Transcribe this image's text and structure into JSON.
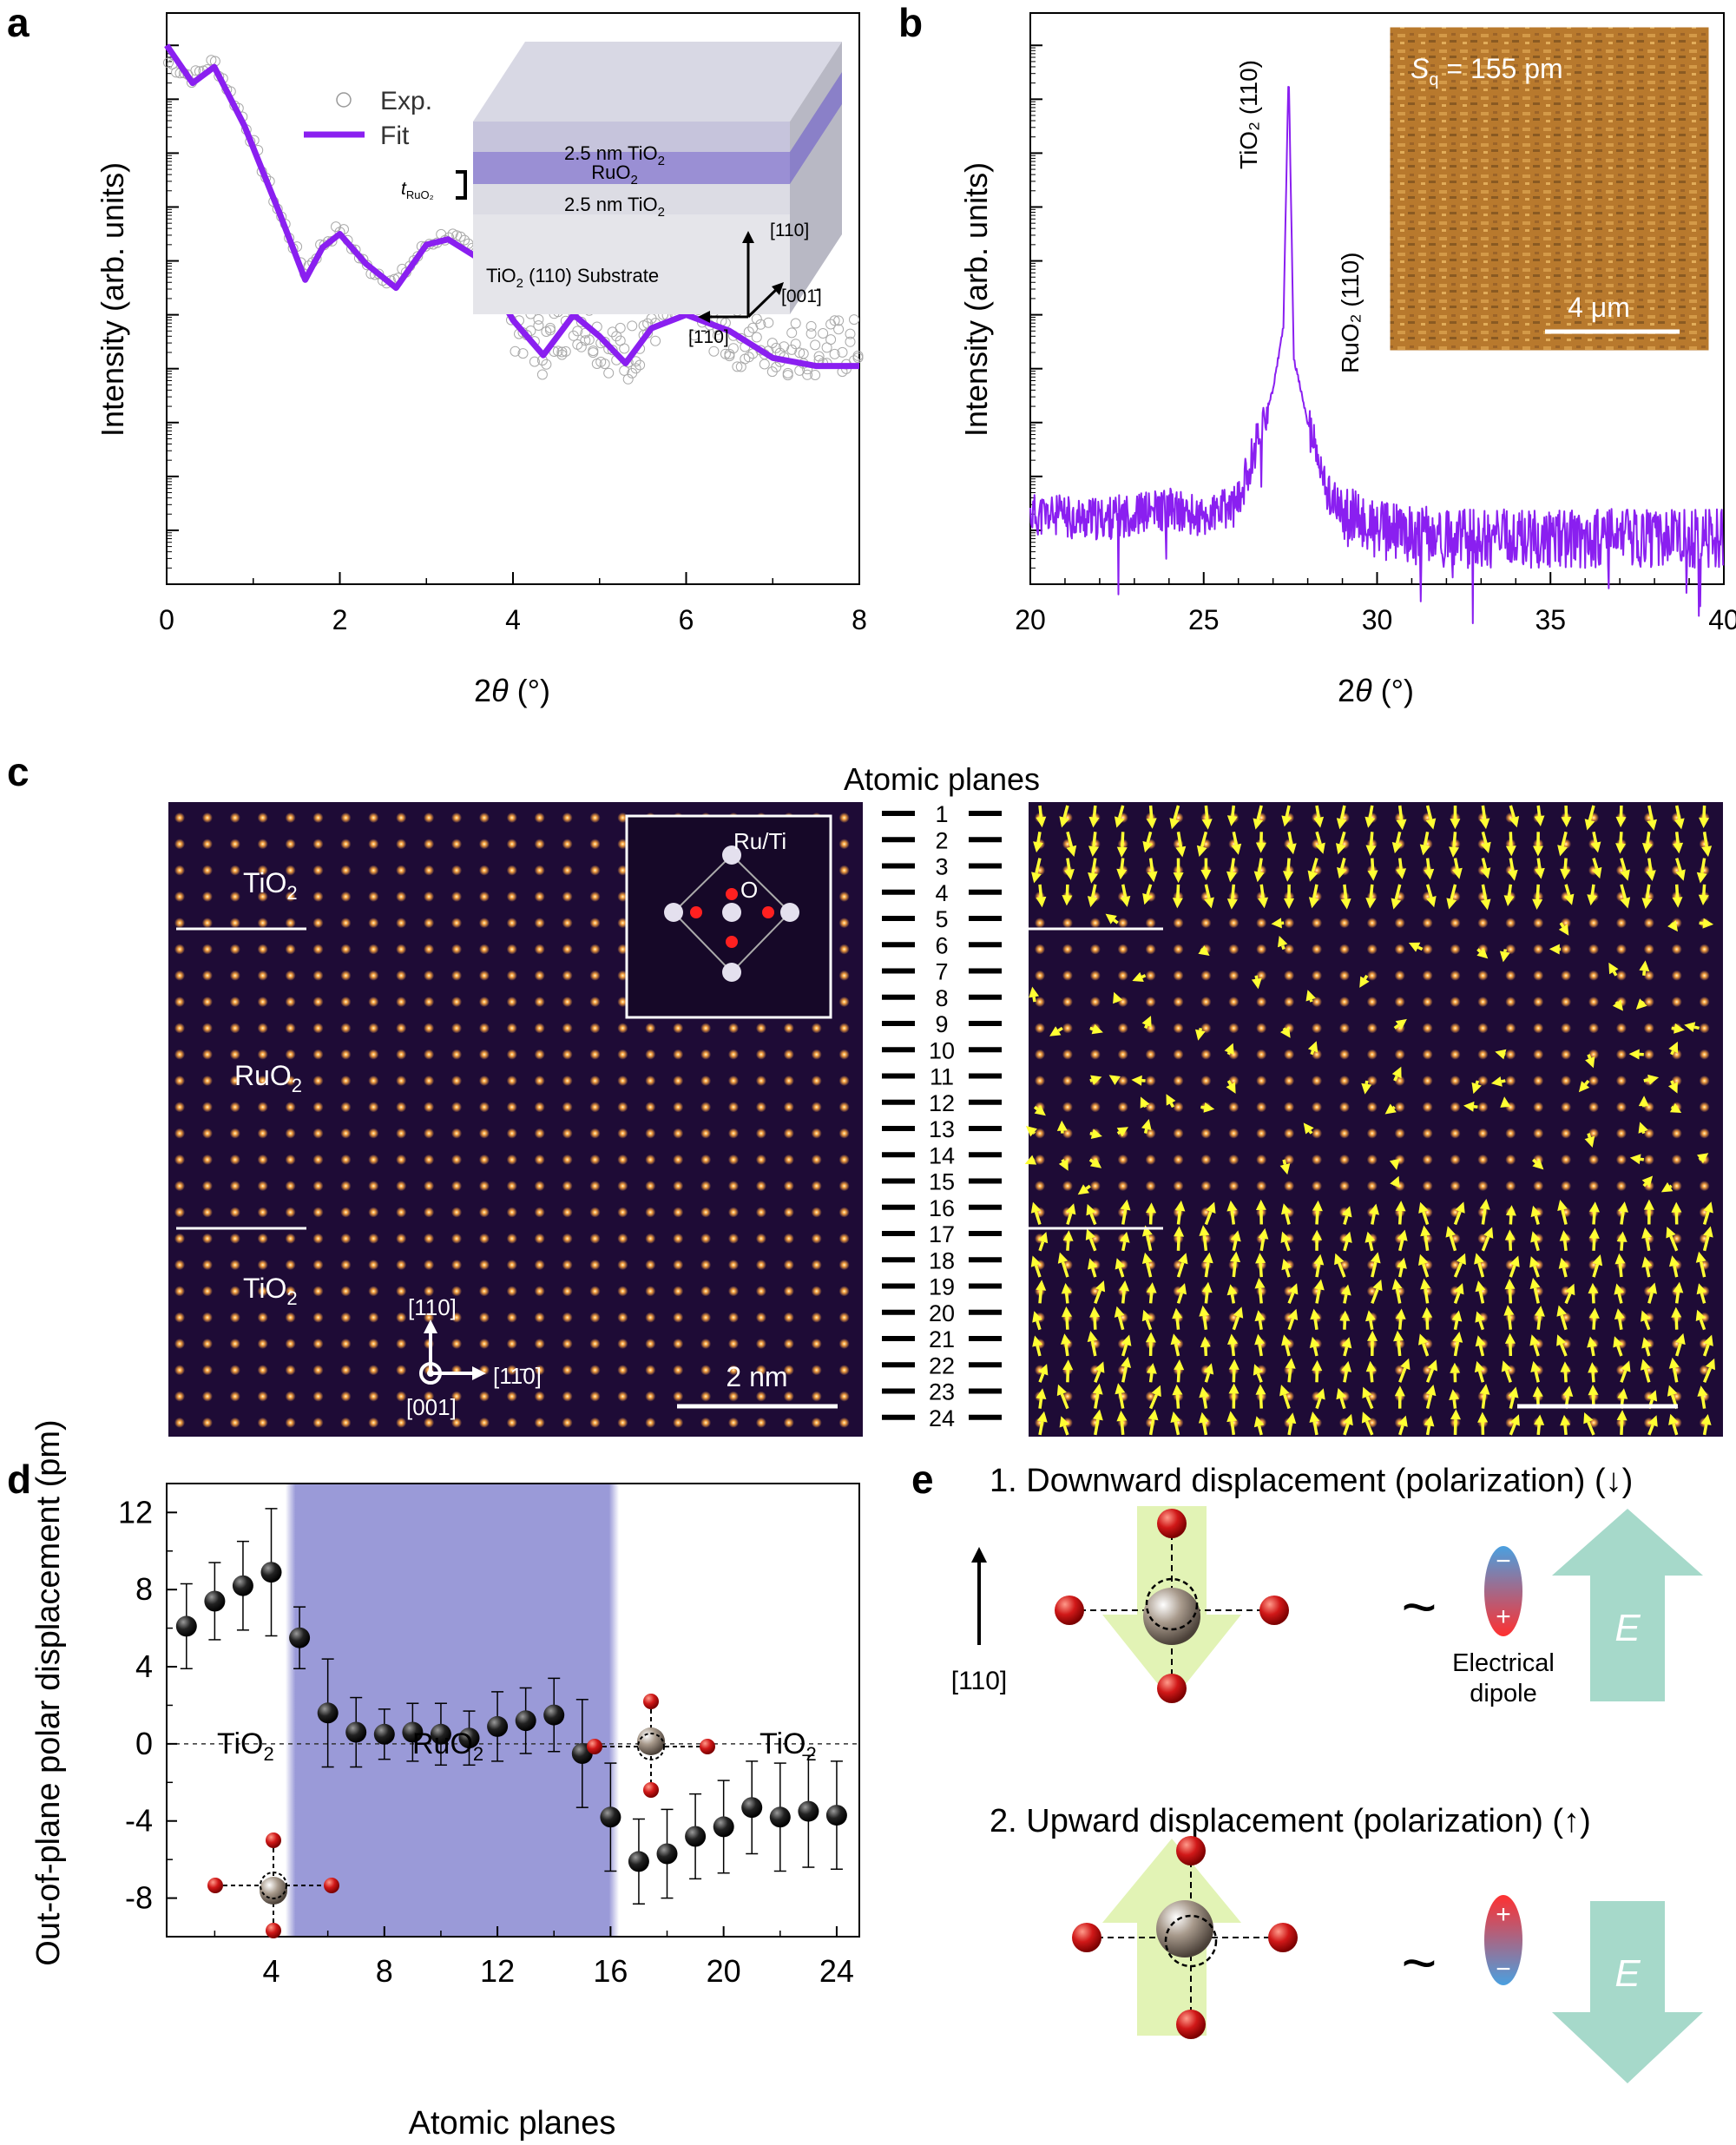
{
  "figure": {
    "panels": [
      "a",
      "b",
      "c",
      "d",
      "e"
    ]
  },
  "panel_a": {
    "ylabel": "Intensity (arb. units)",
    "xlabel_pre": "2",
    "xlabel_theta": "θ",
    "xlabel_post": " (°)",
    "legend": {
      "exp": "Exp.",
      "fit": "Fit"
    },
    "inset": {
      "top_layer": "2.5 nm TiO",
      "top_layer_sub": "2",
      "mid_layer": "RuO",
      "mid_layer_sub": "2",
      "bottom_layer": "2.5 nm TiO",
      "bottom_layer_sub": "2",
      "thickness_label": "t",
      "thickness_sub": "RuO₂",
      "substrate_pre": "TiO",
      "substrate_sub": "2",
      "substrate_post": " (110) Substrate",
      "dir_up": "[110]",
      "dir_right": "[001̄]",
      "dir_left": "[1̄10]"
    }
  },
  "panel_b": {
    "ylabel": "Intensity (arb. units)",
    "xlabel_pre": "2",
    "xlabel_theta": "θ",
    "xlabel_post": " (°)",
    "peak_tio2": "TiO₂ (110)",
    "peak_ruo2": "RuO₂ (110)",
    "inset_sq_pre": "S",
    "inset_sq_sub": "q",
    "inset_sq_post": " = 155 pm",
    "inset_scale": "4 μm"
  },
  "panel_c": {
    "title": "Atomic planes",
    "label_tio2_top": "TiO",
    "label_ruo2": "RuO",
    "label_tio2_bottom": "TiO",
    "sub2": "2",
    "inset_ruti": "Ru/Ti",
    "inset_o": "O",
    "axis_up": "[110]",
    "axis_right": "[11̄0]",
    "axis_out": "[001]",
    "scale": "2 nm",
    "planes": [
      "1",
      "2",
      "3",
      "4",
      "5",
      "6",
      "7",
      "8",
      "9",
      "10",
      "11",
      "12",
      "13",
      "14",
      "15",
      "16",
      "17",
      "18",
      "19",
      "20",
      "21",
      "22",
      "23",
      "24"
    ]
  },
  "panel_e": {
    "title_down": "1. Downward displacement (polarization) (↓)",
    "title_up": "2. Upward displacement (polarization) (↑)",
    "dir_label": "[110]",
    "tilde": "~",
    "dipole_label_1": "Electrical",
    "dipole_label_2": "dipole",
    "field": "E",
    "minus": "−",
    "plus": "+"
  },
  "chart_data": [
    {
      "panel": "a",
      "type": "line",
      "title": "",
      "xlabel": "2θ (°)",
      "ylabel": "Intensity (arb. units)",
      "xlim": [
        0,
        8
      ],
      "ylim": "log scale, arb. units",
      "xticks": [
        "0",
        "2",
        "4",
        "6",
        "8"
      ],
      "series": [
        {
          "name": "Exp.",
          "marker": "open circle",
          "x": [
            0,
            0.3,
            0.55,
            0.9,
            1.3,
            1.6,
            1.8,
            2.0,
            2.3,
            2.65,
            3.0,
            3.25,
            3.6,
            4.0,
            4.35,
            4.7,
            5.0,
            5.3,
            5.6,
            6.0,
            6.5,
            7.0,
            7.5,
            8.0
          ],
          "y": [
            9.7,
            9.4,
            9.7,
            8.6,
            6.9,
            5.8,
            6.3,
            6.6,
            5.9,
            5.6,
            6.3,
            6.5,
            6.1,
            4.9,
            4.4,
            5.0,
            4.6,
            4.2,
            4.9,
            5.2,
            4.6,
            4.4,
            4.4,
            4.4
          ]
        },
        {
          "name": "Fit",
          "x": [
            0,
            0.3,
            0.55,
            0.9,
            1.3,
            1.6,
            1.8,
            2.0,
            2.3,
            2.65,
            3.0,
            3.25,
            3.6,
            4.0,
            4.35,
            4.7,
            5.0,
            5.3,
            5.6,
            6.0,
            6.5,
            7.0,
            7.5,
            8.0
          ],
          "y": [
            10.0,
            9.3,
            9.6,
            8.5,
            6.9,
            5.65,
            6.25,
            6.5,
            5.95,
            5.5,
            6.3,
            6.4,
            6.05,
            4.9,
            4.25,
            5.0,
            4.6,
            4.1,
            4.75,
            5.0,
            4.7,
            4.2,
            4.05,
            4.05
          ]
        }
      ]
    },
    {
      "panel": "b",
      "type": "line",
      "title": "",
      "xlabel": "2θ (°)",
      "ylabel": "Intensity (arb. units)",
      "xlim": [
        20,
        40
      ],
      "xticks": [
        "20",
        "25",
        "30",
        "35",
        "40"
      ],
      "series": [
        {
          "name": "XRD",
          "x": [
            20,
            22,
            24,
            25,
            26,
            26.5,
            27,
            27.3,
            27.45,
            27.6,
            28,
            28.5,
            29,
            30,
            32,
            35,
            38,
            40
          ],
          "y": [
            1.3,
            1.2,
            1.4,
            1.2,
            1.5,
            2.6,
            3.6,
            4.8,
            9.6,
            4.2,
            3.0,
            1.8,
            1.3,
            1.0,
            0.85,
            0.85,
            0.85,
            0.85
          ]
        }
      ],
      "annotations": [
        "TiO₂ (110)",
        "RuO₂ (110)"
      ]
    },
    {
      "panel": "d",
      "type": "scatter",
      "title": "",
      "xlabel": "Atomic planes",
      "ylabel": "Out-of-plane polar displacement (pm)",
      "xlim": [
        0.3,
        24.8
      ],
      "ylim": [
        -10,
        13.5
      ],
      "xticks": [
        4,
        8,
        12,
        16,
        20,
        24
      ],
      "yticks": [
        -8,
        -4,
        0,
        4,
        8,
        12
      ],
      "shaded_region": [
        4.5,
        16.3
      ],
      "region_labels": [
        "TiO₂",
        "RuO₂",
        "TiO₂"
      ],
      "x": [
        1,
        2,
        3,
        4,
        5,
        6,
        7,
        8,
        9,
        10,
        11,
        12,
        13,
        14,
        15,
        16,
        17,
        18,
        19,
        20,
        21,
        22,
        23,
        24
      ],
      "y": [
        6.1,
        7.4,
        8.2,
        8.9,
        5.5,
        1.6,
        0.6,
        0.5,
        0.6,
        0.5,
        0.3,
        0.9,
        1.2,
        1.5,
        -0.5,
        -3.8,
        -6.1,
        -5.7,
        -4.8,
        -4.3,
        -3.3,
        -3.8,
        -3.5,
        -3.7
      ],
      "err": [
        2.2,
        2.0,
        2.3,
        3.3,
        1.6,
        2.8,
        1.8,
        1.3,
        1.5,
        1.6,
        1.4,
        1.8,
        1.7,
        1.9,
        2.8,
        2.8,
        2.2,
        2.3,
        2.2,
        2.4,
        2.4,
        2.8,
        2.9,
        2.8
      ]
    }
  ],
  "colors": {
    "fit": "#8a1ff0",
    "xrd": "#8a1ff0",
    "shade": "#8f8fd2",
    "stem_bg": "#1e0b36",
    "atom": "#f7a14a",
    "arrow": "#ffff33",
    "afm": "#b47a30",
    "oxygen": "#cc1111",
    "field_arrow": "#a6d9ca",
    "displ_arrow": "#e2f3b5"
  }
}
